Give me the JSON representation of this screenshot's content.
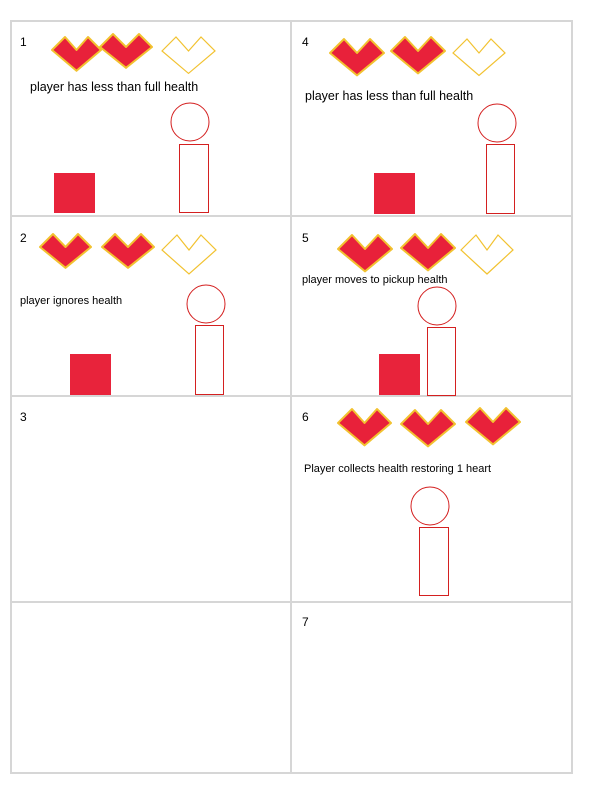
{
  "panels": [
    {
      "number": "1",
      "caption": "player has less than full health",
      "hearts": [
        "full",
        "full",
        "empty"
      ]
    },
    {
      "number": "2",
      "caption": "player ignores health",
      "hearts": [
        "full",
        "full",
        "empty"
      ]
    },
    {
      "number": "3",
      "caption": "",
      "hearts": []
    },
    {
      "number": "4",
      "caption": "player has less than full health",
      "hearts": [
        "full",
        "full",
        "empty"
      ]
    },
    {
      "number": "5",
      "caption": "player moves to pickup health",
      "hearts": [
        "full",
        "full",
        "empty"
      ]
    },
    {
      "number": "6",
      "caption": "Player collects health restoring 1 heart",
      "hearts": [
        "full",
        "full",
        "full"
      ]
    },
    {
      "number": "",
      "caption": "",
      "hearts": []
    },
    {
      "number": "7",
      "caption": "",
      "hearts": []
    }
  ],
  "colors": {
    "heart_fill": "#e8213a",
    "heart_outline": "#f2c230",
    "pickup": "#e8233b",
    "player_outline": "#d42020",
    "grid": "#d6d6d6"
  }
}
